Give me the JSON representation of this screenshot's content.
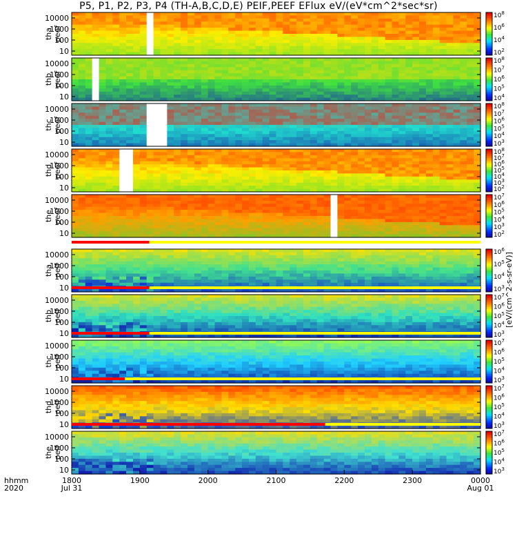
{
  "title": "P5, P1, P2, P3, P4 (TH-A,B,C,D,E) PEIF,PEEF EFlux eV/(eV*cm^2*sec*sr)",
  "colorbar_unit_label": "[eV/(cm^2-s-sr-eV)]",
  "chart_data": {
    "type": "heatmap",
    "x_range": [
      "1800 Jul 31",
      "0000 Aug 01"
    ],
    "x_ticks": [
      "1800",
      "1900",
      "2000",
      "2100",
      "2200",
      "2300",
      "0000"
    ],
    "x_subticks": [
      "Jul 31",
      "",
      "",
      "",
      "",
      "",
      "Aug 01"
    ],
    "x_corner_labels": [
      "hhmm",
      "2020"
    ],
    "y_scale": "log",
    "y_ticks": [
      "10",
      "100",
      "1000",
      "10000"
    ],
    "panels": [
      {
        "name": "tha peef",
        "species": "electron",
        "probe": "a",
        "cbar_ticks": [
          "10^2",
          "10^4",
          "10^6",
          "10^8"
        ],
        "gaps": [
          [
            0.17,
            0.2
          ]
        ],
        "colors": {
          "hi": "#ff2000",
          "mid": "#ffee00",
          "lo": "#3cdc40"
        }
      },
      {
        "name": "thb peef",
        "species": "electron",
        "probe": "b",
        "cbar_ticks": [
          "10^4",
          "10^5",
          "10^6",
          "10^7",
          "10^8"
        ],
        "gaps": [
          [
            0.05,
            0.06
          ]
        ],
        "colors": {
          "hi": "#ffe000",
          "mid": "#40e040",
          "lo": "#1020c0"
        }
      },
      {
        "name": "thc peef",
        "species": "electron",
        "probe": "c",
        "cbar_ticks": [
          "10^3",
          "10^4",
          "10^5",
          "10^6",
          "10^7",
          "10^8"
        ],
        "gaps": [
          [
            0.17,
            0.23
          ]
        ],
        "colors": {
          "hi": "#ff1000",
          "mid": "#20e0d0",
          "lo": "#1818a0"
        }
      },
      {
        "name": "thd peef",
        "species": "electron",
        "probe": "d",
        "cbar_ticks": [
          "10^2",
          "10^3",
          "10^4",
          "10^5",
          "10^6",
          "10^7",
          "10^8"
        ],
        "gaps": [
          [
            0.11,
            0.135
          ]
        ],
        "colors": {
          "hi": "#ff2000",
          "mid": "#ffee00",
          "lo": "#3cdc40"
        }
      },
      {
        "name": "the peef",
        "species": "electron",
        "probe": "e",
        "cbar_ticks": [
          "10^2",
          "10^3",
          "10^4",
          "10^5",
          "10^6",
          "10^7"
        ],
        "gaps": [
          [
            0.62,
            0.645
          ]
        ],
        "colors": {
          "hi": "#ff2000",
          "mid": "#ffa000",
          "lo": "#3cdc40"
        }
      },
      {
        "name": "tha peif",
        "species": "ion",
        "probe": "a",
        "cbar_ticks": [
          "10^3",
          "10^4",
          "10^5",
          "10^6"
        ],
        "gaps": [],
        "colors": {
          "hi": "#ffe000",
          "mid": "#40e090",
          "lo": "#1030d0"
        }
      },
      {
        "name": "thb peif",
        "species": "ion",
        "probe": "b",
        "cbar_ticks": [
          "10^3",
          "10^4",
          "10^5",
          "10^6",
          "10^7"
        ],
        "gaps": [],
        "colors": {
          "hi": "#ffdd00",
          "mid": "#30e0c0",
          "lo": "#1020b0"
        }
      },
      {
        "name": "thc peif",
        "species": "ion",
        "probe": "c",
        "cbar_ticks": [
          "10^3",
          "10^4",
          "10^5",
          "10^6",
          "10^7"
        ],
        "gaps": [],
        "colors": {
          "hi": "#a0ff40",
          "mid": "#20d0ff",
          "lo": "#1020a0"
        }
      },
      {
        "name": "thd peif",
        "species": "ion",
        "probe": "d",
        "cbar_ticks": [
          "10^3",
          "10^4",
          "10^5",
          "10^6",
          "10^7"
        ],
        "gaps": [],
        "colors": {
          "hi": "#ff4000",
          "mid": "#ffe000",
          "lo": "#1040d0"
        }
      },
      {
        "name": "the peif",
        "species": "ion",
        "probe": "e",
        "cbar_ticks": [
          "10^3",
          "10^4",
          "10^5",
          "10^6",
          "10^7"
        ],
        "gaps": [],
        "colors": {
          "hi": "#ffdd00",
          "mid": "#40e0d0",
          "lo": "#1020b0"
        }
      }
    ],
    "mode_bars": [
      {
        "panel": "tha peif",
        "fraction": 0.19
      },
      {
        "panel": "thb peif",
        "fraction": 0.19
      },
      {
        "panel": "thc peif",
        "fraction": 0.19
      },
      {
        "panel": "thd peif",
        "fraction": 0.13
      },
      {
        "panel": "the peif",
        "fraction": 0.62
      }
    ]
  }
}
